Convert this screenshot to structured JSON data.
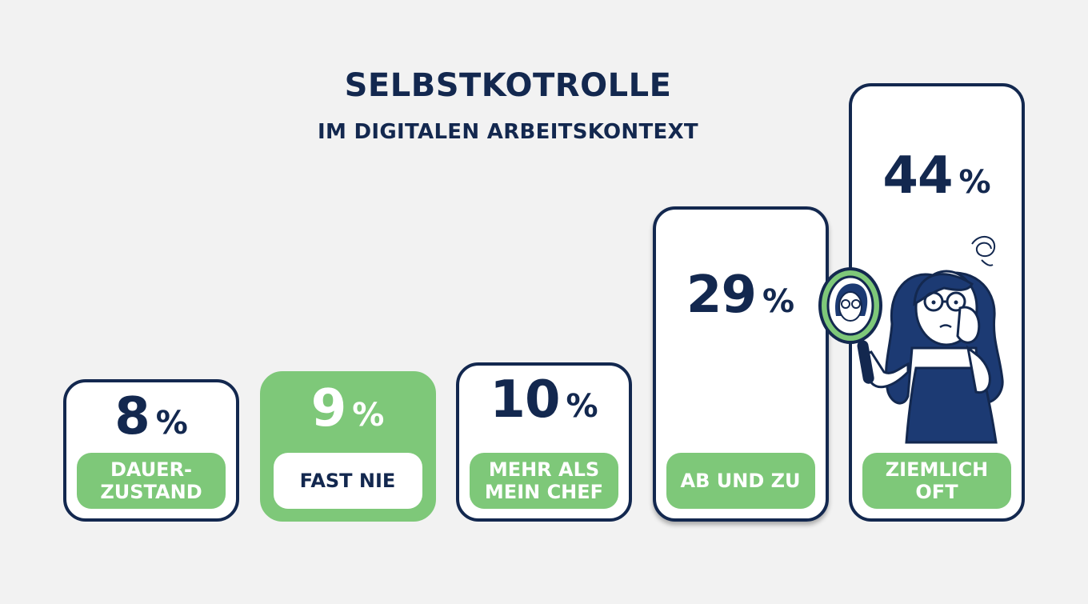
{
  "title": "SELBSTKOTROLLE",
  "subtitle": "IM DIGITALEN ARBEITSKONTEXT",
  "colors": {
    "navy": "#13284f",
    "green": "#7ec879",
    "background": "#f2f2f2",
    "card": "#ffffff"
  },
  "chart_data": {
    "type": "bar",
    "title": "SELBSTKOTROLLE",
    "subtitle": "IM DIGITALEN ARBEITSKONTEXT",
    "categories": [
      "DAUER-\nZUSTAND",
      "FAST NIE",
      "MEHR ALS\nMEIN CHEF",
      "AB UND ZU",
      "ZIEMLICH\nOFT"
    ],
    "values": [
      8,
      9,
      10,
      29,
      44
    ],
    "unit": "%",
    "highlighted_category": "FAST NIE",
    "ylim": [
      0,
      44
    ],
    "grid": false,
    "legend": "none"
  },
  "illustration": {
    "icon": "woman-looking-in-mirror-icon",
    "scribble": "stress-scribble-icon"
  }
}
